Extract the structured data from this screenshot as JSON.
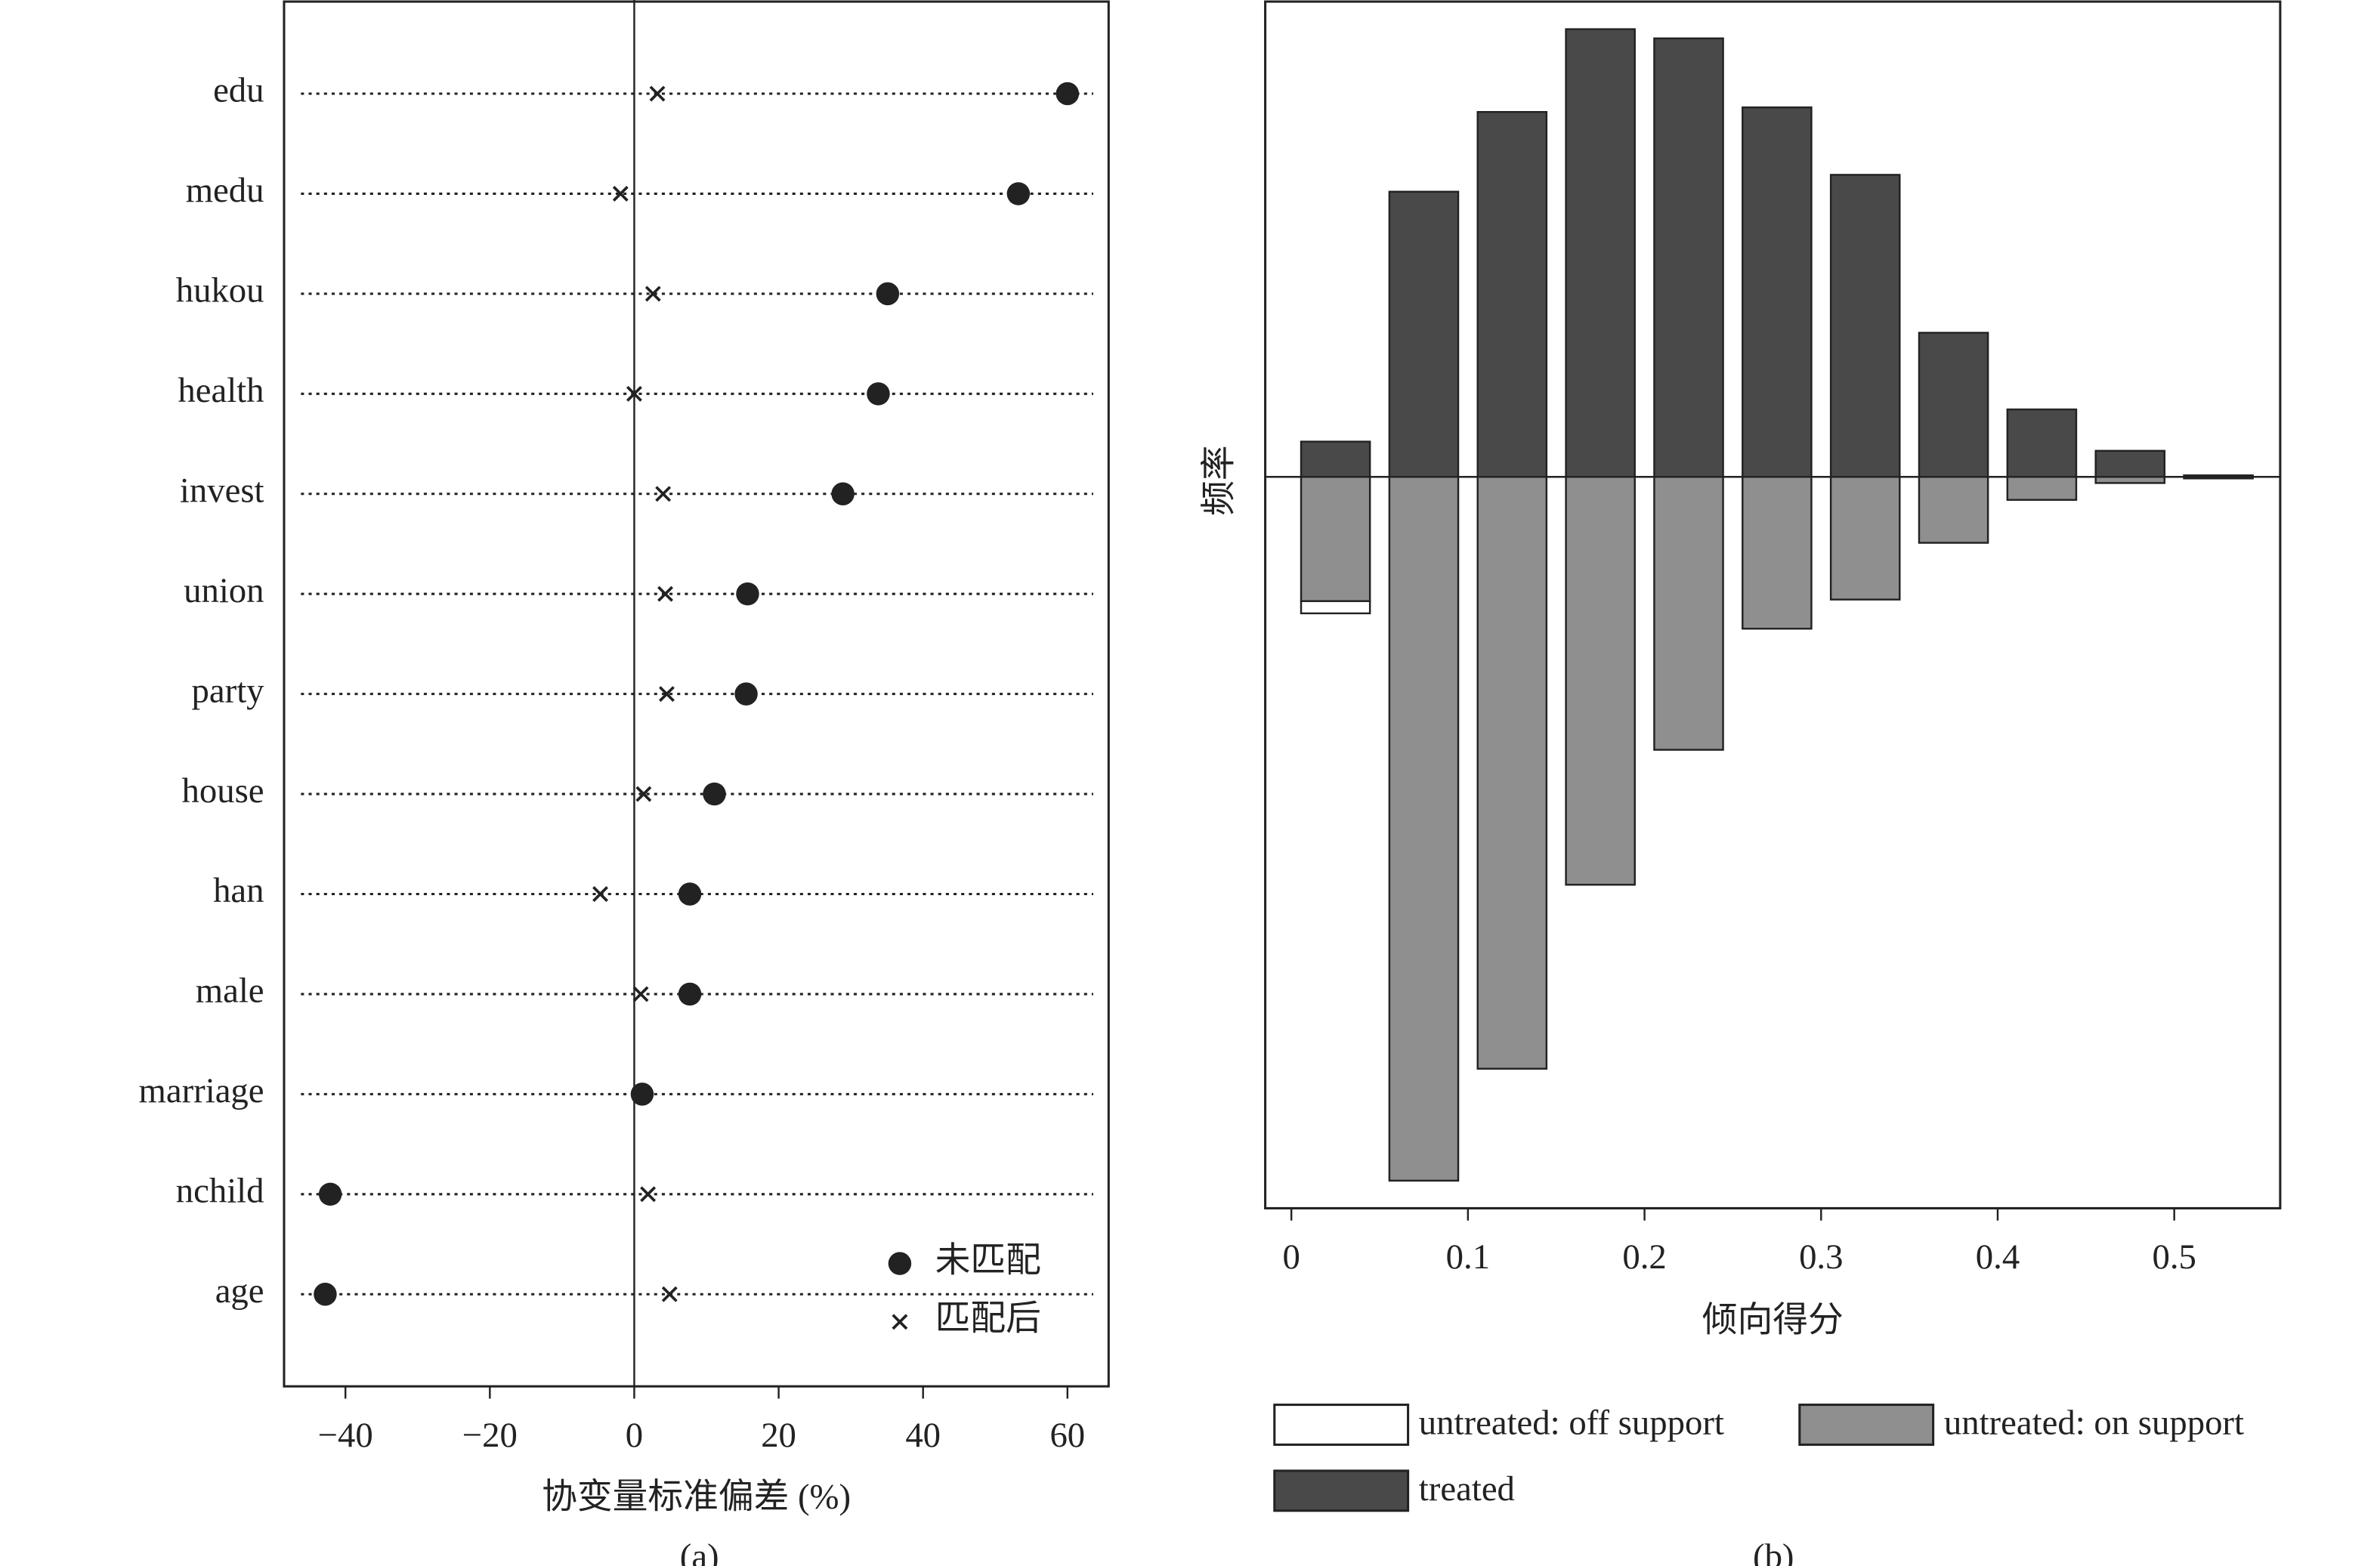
{
  "chart_data": [
    {
      "type": "dot",
      "caption": "(a)",
      "x_label": "协变量标准偏差 (%)",
      "categories": [
        "edu",
        "medu",
        "hukou",
        "health",
        "invest",
        "union",
        "party",
        "house",
        "han",
        "male",
        "marriage",
        "nchild",
        "age"
      ],
      "series": [
        {
          "name": "未匹配",
          "color": "#222222",
          "marker": "circle",
          "values": [
            60,
            53.2,
            35.1,
            33.8,
            28.9,
            15.7,
            15.5,
            11.1,
            7.7,
            7.7,
            1.1,
            -42.1,
            -42.8
          ]
        },
        {
          "name": "匹配后",
          "color": "#222222",
          "marker": "x",
          "values": [
            3.2,
            -1.9,
            2.6,
            0,
            4.0,
            4.3,
            4.5,
            1.3,
            -4.7,
            0.9,
            0.8,
            1.9,
            4.9
          ]
        }
      ],
      "xlim": [
        -48.5,
        65.7
      ],
      "xticks": [
        {
          "value": -40,
          "label": "−40"
        },
        {
          "value": -20,
          "label": "−20"
        },
        0,
        20,
        40,
        60
      ]
    },
    {
      "type": "histogram",
      "caption": "(b)",
      "x_label": "倾向得分",
      "y_label": "频率",
      "bins": [
        0,
        0.05,
        0.1,
        0.15,
        0.2,
        0.25,
        0.3,
        0.35,
        0.4,
        0.45,
        0.5,
        0.55
      ],
      "series": [
        {
          "name": "untreated: off support",
          "color": "#ffffff",
          "values": [
            -0.8,
            0,
            0,
            0,
            0,
            0,
            0,
            0,
            0,
            0,
            0
          ]
        },
        {
          "name": "untreated: on support",
          "color": "#908f90",
          "values": [
            -8.1,
            -45.9,
            -38.6,
            -26.6,
            -17.8,
            -9.9,
            -8.0,
            -4.3,
            -1.5,
            -0.4,
            -0.1
          ]
        },
        {
          "name": "treated",
          "color": "#4a494a",
          "values": [
            2.3,
            18.6,
            23.8,
            29.2,
            28.6,
            24.1,
            19.7,
            9.4,
            4.4,
            1.7,
            0.1
          ]
        }
      ],
      "xlim": [
        -0.0148,
        0.56
      ],
      "ylim": [
        -47.7,
        31
      ],
      "xticks": [
        0,
        0.1,
        0.2,
        0.3,
        0.4,
        0.5
      ]
    }
  ]
}
